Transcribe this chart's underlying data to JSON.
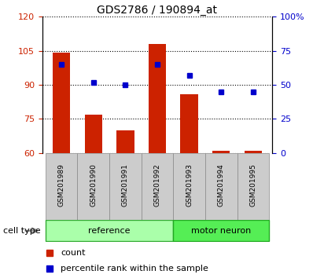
{
  "title": "GDS2786 / 190894_at",
  "categories": [
    "GSM201989",
    "GSM201990",
    "GSM201991",
    "GSM201992",
    "GSM201993",
    "GSM201994",
    "GSM201995"
  ],
  "bar_values": [
    104,
    77,
    70,
    108,
    86,
    61,
    61
  ],
  "percentile_values": [
    65,
    52,
    50,
    65,
    57,
    45,
    45
  ],
  "bar_color": "#cc2200",
  "dot_color": "#0000cc",
  "ylim_left": [
    60,
    120
  ],
  "ylim_right": [
    0,
    100
  ],
  "yticks_left": [
    60,
    75,
    90,
    105,
    120
  ],
  "yticks_right": [
    0,
    25,
    50,
    75,
    100
  ],
  "yticklabels_right": [
    "0",
    "25",
    "50",
    "75",
    "100%"
  ],
  "group_labels": [
    "reference",
    "motor neuron"
  ],
  "cell_type_label": "cell type",
  "legend_count": "count",
  "legend_percentile": "percentile rank within the sample",
  "bar_width": 0.55,
  "background_color": "#ffffff",
  "tick_area_color": "#cccccc",
  "ref_color": "#aaffaa",
  "motor_color": "#55ee55",
  "ref_edge_color": "#33aa33",
  "motor_edge_color": "#22aa22"
}
